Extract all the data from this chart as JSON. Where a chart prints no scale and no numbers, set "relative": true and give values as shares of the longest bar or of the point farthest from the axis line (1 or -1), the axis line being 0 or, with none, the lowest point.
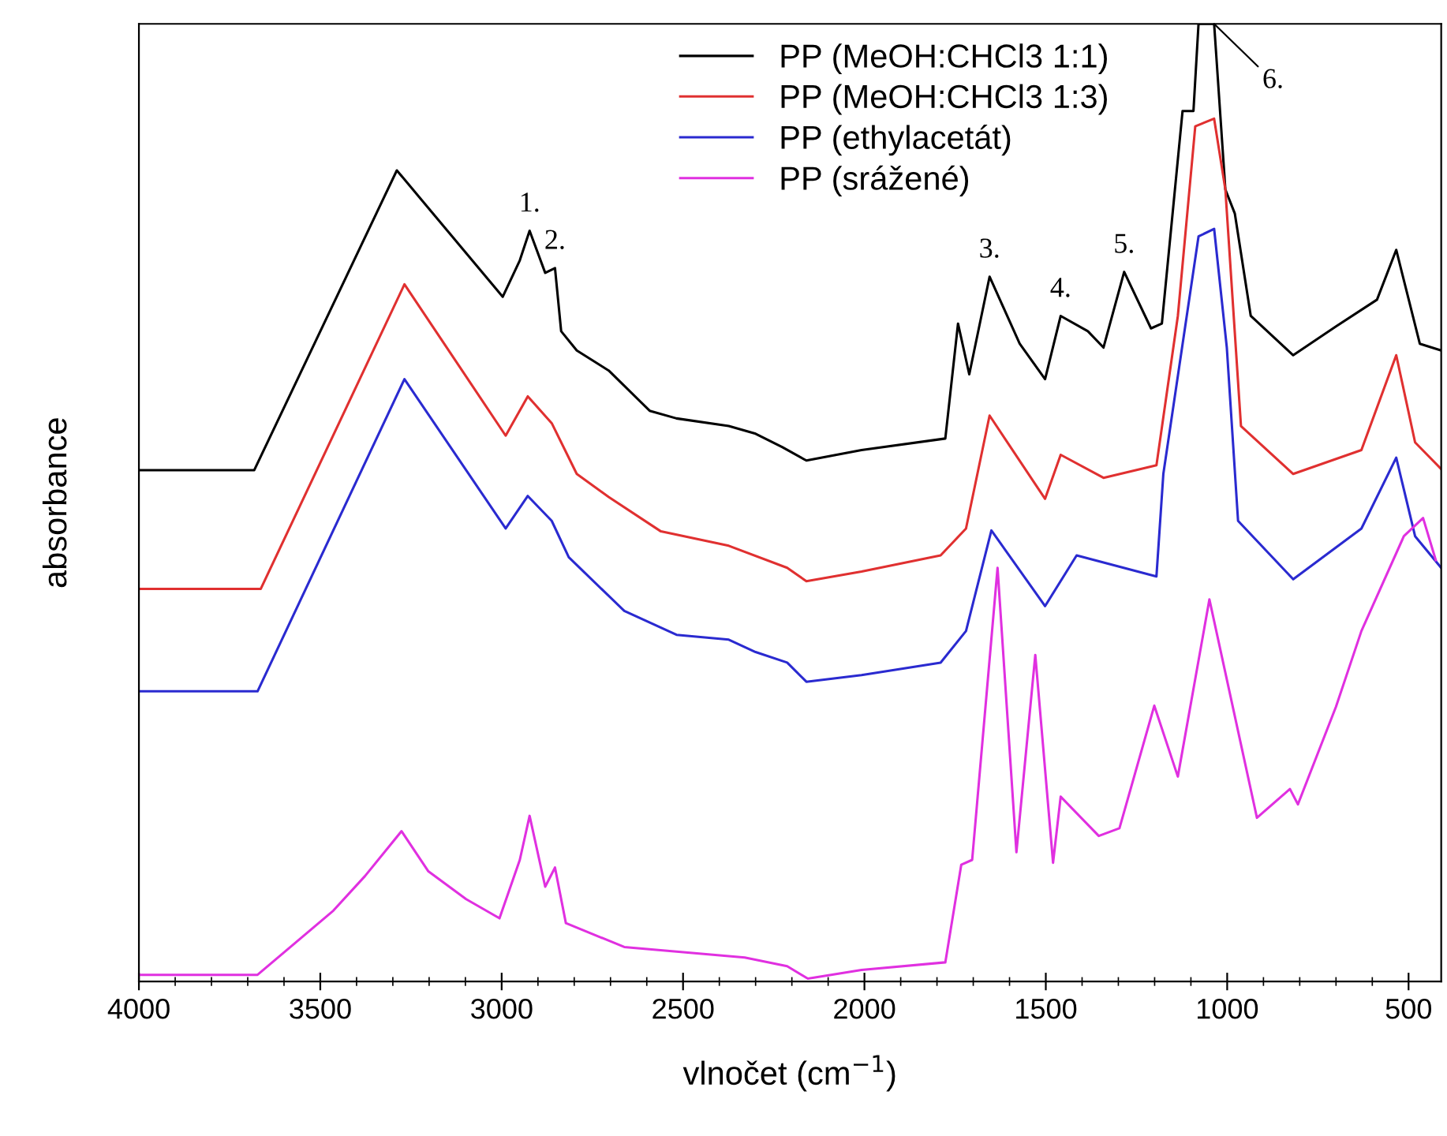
{
  "chart_data": {
    "type": "line",
    "relative": true,
    "xlabel": "vlnočet (cm$^{−1}$)",
    "ylabel": "absorbance",
    "xlim": [
      4000,
      410
    ],
    "xticks": [
      4000,
      3500,
      3000,
      2500,
      2000,
      1500,
      1000,
      500
    ],
    "legend": "top right",
    "grid": false,
    "marker": "none",
    "line_style": "solid",
    "series": [
      {
        "name": "PP (MeOH:CHCl3 1:1)",
        "color": "#000000",
        "x": [
          4000,
          3682,
          3289,
          2997,
          2950,
          2923,
          2880,
          2853,
          2836,
          2793,
          2705,
          2592,
          2518,
          2374,
          2300,
          2226,
          2160,
          2008,
          1777,
          1742,
          1711,
          1655,
          1572,
          1502,
          1459,
          1384,
          1341,
          1284,
          1210,
          1180,
          1123,
          1093,
          1079,
          1036,
          1005,
          979,
          935,
          818,
          700,
          587,
          534,
          469,
          410
        ],
        "values": [
          0.534,
          0.534,
          0.847,
          0.715,
          0.753,
          0.784,
          0.74,
          0.745,
          0.679,
          0.659,
          0.638,
          0.596,
          0.588,
          0.58,
          0.572,
          0.558,
          0.544,
          0.555,
          0.567,
          0.687,
          0.634,
          0.736,
          0.666,
          0.629,
          0.695,
          0.679,
          0.662,
          0.741,
          0.682,
          0.687,
          0.909,
          0.909,
          1.0,
          1.0,
          0.827,
          0.802,
          0.695,
          0.654,
          0.684,
          0.712,
          0.764,
          0.666,
          0.659
        ]
      },
      {
        "name": "PP (MeOH:CHCl3 1:3)",
        "color": "#e03030",
        "x": [
          4000,
          3664,
          3268,
          2989,
          2928,
          2862,
          2793,
          2705,
          2561,
          2374,
          2213,
          2160,
          2008,
          1790,
          1720,
          1655,
          1502,
          1459,
          1341,
          1195,
          1136,
          1088,
          1036,
          1005,
          962,
          818,
          630,
          534,
          482,
          410
        ],
        "values": [
          0.41,
          0.41,
          0.728,
          0.57,
          0.611,
          0.583,
          0.53,
          0.506,
          0.47,
          0.455,
          0.432,
          0.418,
          0.428,
          0.445,
          0.473,
          0.591,
          0.504,
          0.55,
          0.526,
          0.539,
          0.695,
          0.893,
          0.901,
          0.827,
          0.58,
          0.53,
          0.555,
          0.654,
          0.563,
          0.535
        ]
      },
      {
        "name": "PP (ethylacetát)",
        "color": "#2a2ad0",
        "x": [
          4000,
          3673,
          3268,
          2989,
          2928,
          2862,
          2815,
          2662,
          2518,
          2374,
          2300,
          2213,
          2160,
          2008,
          1790,
          1720,
          1650,
          1502,
          1415,
          1195,
          1176,
          1079,
          1036,
          1001,
          970,
          818,
          630,
          534,
          482,
          410
        ],
        "values": [
          0.303,
          0.303,
          0.629,
          0.473,
          0.507,
          0.481,
          0.443,
          0.387,
          0.362,
          0.357,
          0.344,
          0.333,
          0.313,
          0.32,
          0.333,
          0.366,
          0.471,
          0.392,
          0.445,
          0.423,
          0.53,
          0.778,
          0.786,
          0.662,
          0.481,
          0.42,
          0.473,
          0.547,
          0.465,
          0.432
        ]
      },
      {
        "name": "PP (srážené)",
        "color": "#e030e0",
        "x": [
          4000,
          3673,
          3464,
          3377,
          3276,
          3202,
          3098,
          3006,
          2950,
          2923,
          2880,
          2853,
          2823,
          2662,
          2330,
          2213,
          2156,
          2008,
          1777,
          1733,
          1703,
          1633,
          1581,
          1529,
          1480,
          1459,
          1354,
          1297,
          1201,
          1136,
          1049,
          918,
          827,
          805,
          700,
          630,
          513,
          460,
          425
        ],
        "values": [
          0.007,
          0.007,
          0.074,
          0.11,
          0.157,
          0.115,
          0.086,
          0.066,
          0.127,
          0.173,
          0.099,
          0.119,
          0.061,
          0.036,
          0.025,
          0.016,
          0.003,
          0.012,
          0.02,
          0.122,
          0.127,
          0.432,
          0.135,
          0.341,
          0.124,
          0.193,
          0.152,
          0.16,
          0.288,
          0.214,
          0.399,
          0.171,
          0.201,
          0.185,
          0.287,
          0.366,
          0.465,
          0.484,
          0.44
        ]
      }
    ],
    "annotations": [
      {
        "text": "1.",
        "x": 2923,
        "y": 0.784
      },
      {
        "text": "2.",
        "x": 2853,
        "y": 0.745
      },
      {
        "text": "3.",
        "x": 1655,
        "y": 0.736
      },
      {
        "text": "4.",
        "x": 1459,
        "y": 0.695
      },
      {
        "text": "5.",
        "x": 1284,
        "y": 0.741
      },
      {
        "text": "6.",
        "x": 1036,
        "y": 1.0
      }
    ]
  }
}
